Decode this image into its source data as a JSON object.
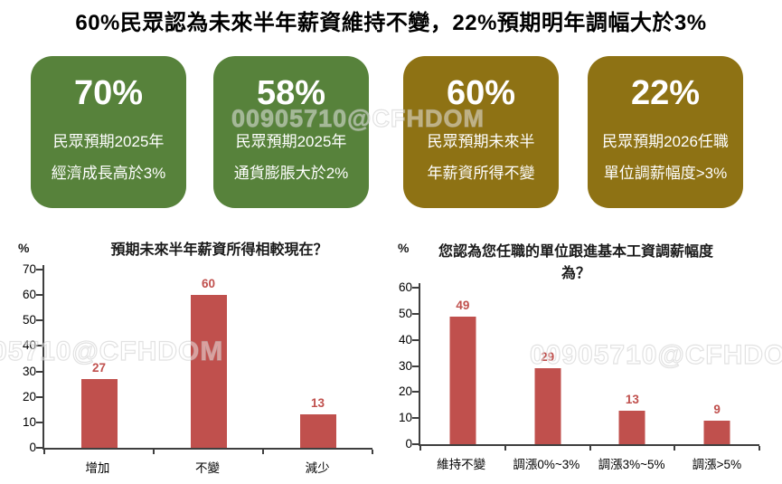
{
  "title": "60%民眾認為未來半年薪資維持不變，22%預期明年調幅大於3%",
  "watermark": "00905710@CFHDOM",
  "colors": {
    "card_green": "#57823B",
    "card_gold": "#8E7214",
    "bar": "#C0504D",
    "data_label": "#C0504D",
    "axis": "#3F3F3F"
  },
  "stat_cards": [
    {
      "value": "70%",
      "line1": "民眾預期2025年",
      "line2": "經濟成長高於3%"
    },
    {
      "value": "58%",
      "line1": "民眾預期2025年",
      "line2": "通貨膨脹大於2%"
    },
    {
      "value": "60%",
      "line1": "民眾預期未來半",
      "line2": "年薪資所得不變"
    },
    {
      "value": "22%",
      "line1": "民眾預期2026任職",
      "line2": "單位調薪幅度>3%"
    }
  ],
  "chart_data": [
    {
      "type": "bar",
      "title": "預期未來半年薪資所得相較現在？",
      "ylabel": "%",
      "xlabel": "",
      "ylim": [
        0,
        70
      ],
      "ytick_step": 10,
      "grid": false,
      "legend": "none",
      "categories": [
        "增加",
        "不變",
        "減少"
      ],
      "values": [
        27,
        60,
        13
      ],
      "bar_color": "#C0504D",
      "data_labels": true
    },
    {
      "type": "bar",
      "title": "您認為您任職的單位跟進基本工資調薪幅度為？",
      "ylabel": "%",
      "xlabel": "",
      "ylim": [
        0,
        60
      ],
      "ytick_step": 10,
      "grid": false,
      "legend": "none",
      "categories": [
        "維持不變",
        "調漲0%~3%",
        "調漲3%~5%",
        "調漲>5%"
      ],
      "values": [
        49,
        29,
        13,
        9
      ],
      "bar_color": "#C0504D",
      "data_labels": true
    }
  ]
}
